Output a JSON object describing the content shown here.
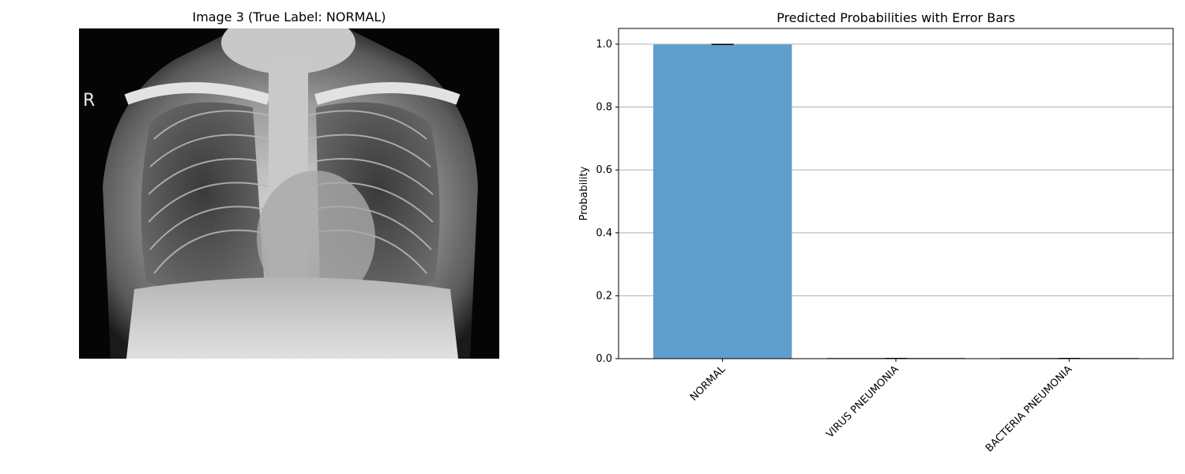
{
  "left_panel": {
    "title": "Image 3 (True Label: NORMAL)",
    "image_marker": "R"
  },
  "chart_data": {
    "type": "bar",
    "title": "Predicted Probabilities with Error Bars",
    "xlabel": "",
    "ylabel": "Probability",
    "categories": [
      "NORMAL",
      "VIRUS PNEUMONIA",
      "BACTERIA PNEUMONIA"
    ],
    "values": [
      0.999,
      0.0005,
      0.0005
    ],
    "errors": [
      0.001,
      0.001,
      0.001
    ],
    "ylim": [
      0,
      1.05
    ],
    "yticks": [
      "0.0",
      "0.2",
      "0.4",
      "0.6",
      "0.8",
      "1.0"
    ],
    "grid": "y",
    "bar_color": "#5f9ecb"
  }
}
